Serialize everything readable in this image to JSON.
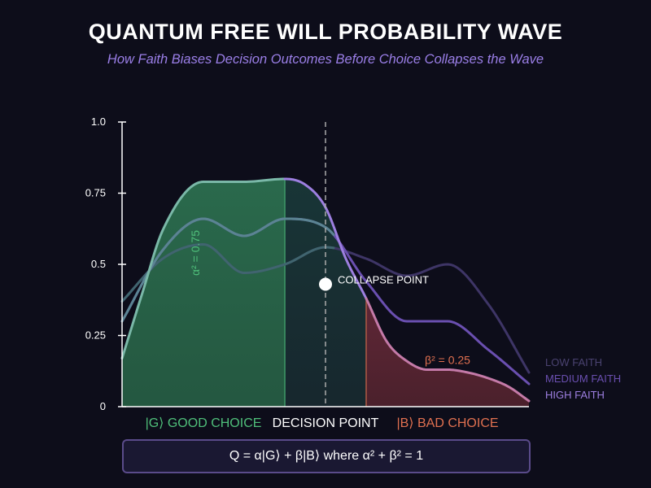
{
  "header": {
    "title": "QUANTUM FREE WILL PROBABILITY WAVE",
    "subtitle": "How Faith Biases Decision Outcomes Before Choice Collapses the Wave"
  },
  "formula": "Q = α|G⟩ + β|B⟩ where α² + β² = 1",
  "colors": {
    "background": "#0d0d1a",
    "good": "#4fbf7a",
    "bad": "#e07050",
    "high_faith": "#9d7fe0",
    "medium_faith": "#6a4fb0",
    "low_faith": "#3e3566",
    "collapse_line": "#aaaaaa"
  },
  "chart_data": {
    "type": "area",
    "title": "QUANTUM FREE WILL PROBABILITY WAVE",
    "subtitle": "How Faith Biases Decision Outcomes Before Choice Collapses the Wave",
    "xlim": [
      0,
      10
    ],
    "ylim": [
      0,
      1
    ],
    "y_ticks": [
      {
        "value": 0,
        "label": "0"
      },
      {
        "value": 0.25,
        "label": "0.25"
      },
      {
        "value": 0.5,
        "label": "0.5"
      },
      {
        "value": 0.75,
        "label": "0.75"
      },
      {
        "value": 1.0,
        "label": "1.0"
      }
    ],
    "x_labels": [
      {
        "x": 2.0,
        "text": "|G⟩ GOOD CHOICE",
        "color": "#4fbf7a"
      },
      {
        "x": 5.0,
        "text": "DECISION POINT",
        "color": "#ffffff"
      },
      {
        "x": 8.0,
        "text": "|B⟩ BAD CHOICE",
        "color": "#e07050"
      }
    ],
    "series": [
      {
        "name": "LOW FAITH",
        "color": "#3e3566",
        "width": 3,
        "x": [
          0,
          1,
          2,
          3,
          4,
          5,
          6,
          7,
          8,
          9,
          10
        ],
        "y": [
          0.37,
          0.52,
          0.57,
          0.47,
          0.5,
          0.56,
          0.52,
          0.46,
          0.5,
          0.36,
          0.12
        ]
      },
      {
        "name": "MEDIUM FAITH",
        "color": "#6a4fb0",
        "width": 3,
        "x": [
          0,
          1,
          2,
          3,
          4,
          5,
          6,
          7,
          8,
          9,
          10
        ],
        "y": [
          0.3,
          0.55,
          0.66,
          0.6,
          0.66,
          0.63,
          0.44,
          0.3,
          0.3,
          0.2,
          0.08
        ]
      },
      {
        "name": "HIGH FAITH",
        "color": "#9d7fe0",
        "width": 3,
        "x": [
          0,
          0.5,
          1,
          2,
          3,
          4,
          4.5,
          5,
          5.5,
          6,
          6.5,
          7,
          7.5,
          8,
          8.5,
          9,
          9.5,
          10
        ],
        "y": [
          0.17,
          0.4,
          0.62,
          0.79,
          0.79,
          0.8,
          0.78,
          0.7,
          0.52,
          0.38,
          0.23,
          0.16,
          0.13,
          0.13,
          0.12,
          0.1,
          0.07,
          0.02
        ]
      }
    ],
    "good_region": {
      "x": [
        0,
        4
      ],
      "label": "α² = 0.75",
      "color": "#4fbf7a"
    },
    "bad_region": {
      "x": [
        6,
        10
      ],
      "label": "β² = 0.25",
      "color": "#e07050"
    },
    "collapse": {
      "x": 5,
      "y": 0.43,
      "label": "COLLAPSE POINT"
    },
    "legend": {
      "position": "bottom-right"
    }
  }
}
